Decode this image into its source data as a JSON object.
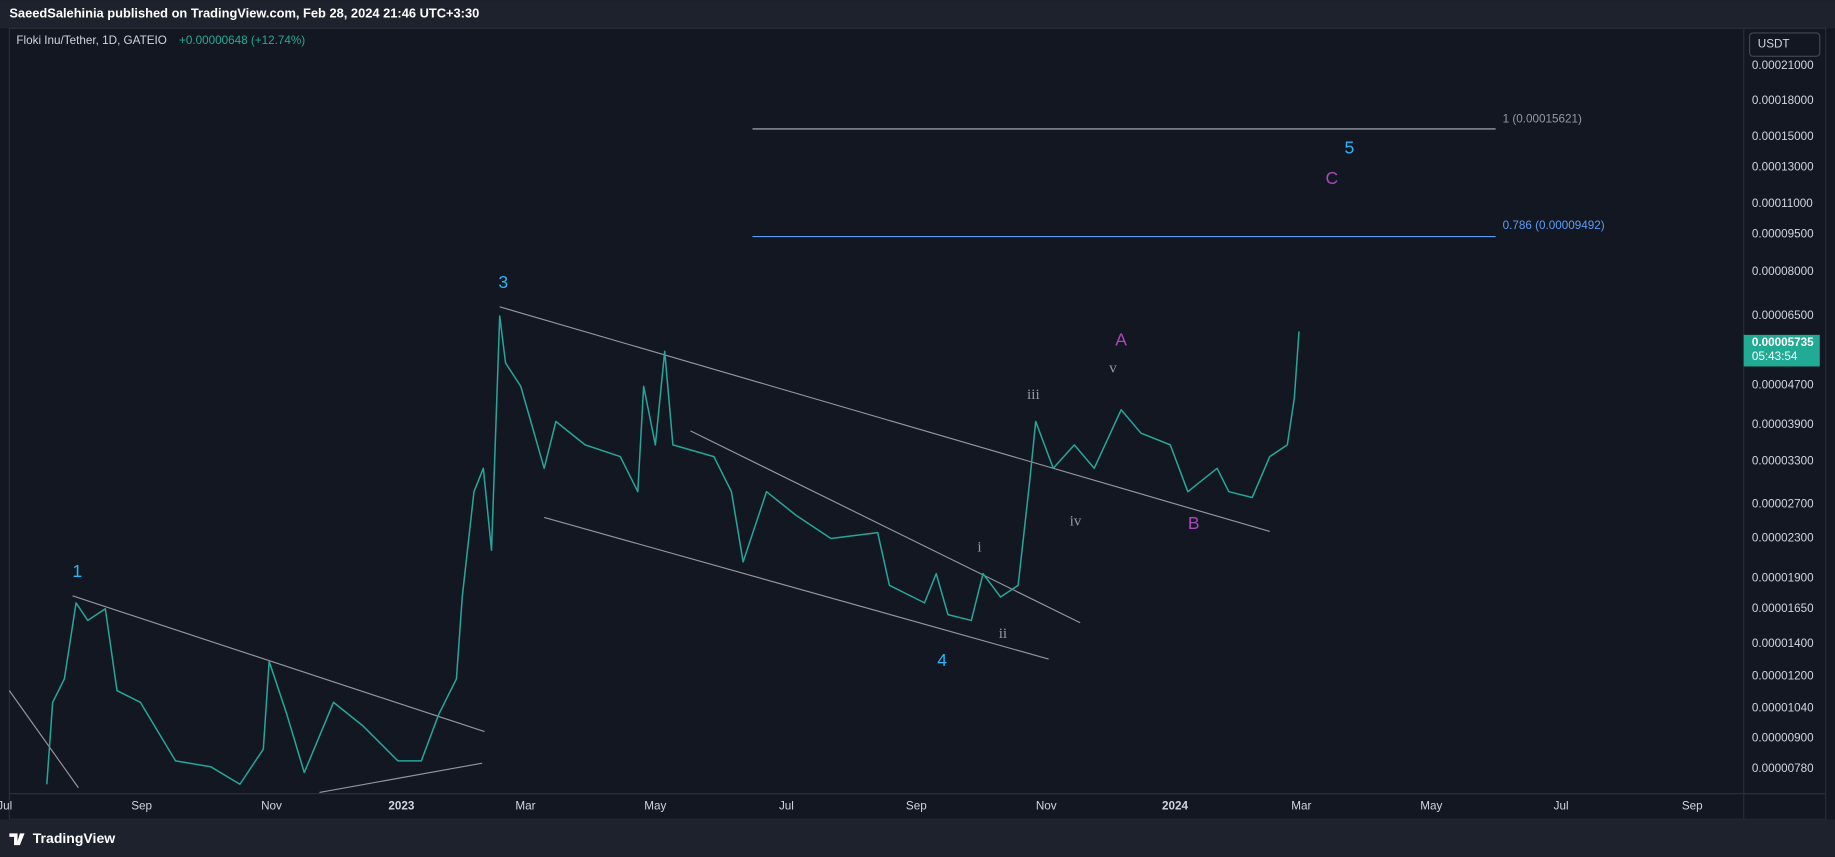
{
  "header": {
    "publisher": "SaeedSalehinia published on TradingView.com, Feb 28, 2024 21:46 UTC+3:30"
  },
  "symbol": {
    "name": "Floki Inu/Tether, 1D, GATEIO",
    "change": "+0.00000648 (+12.74%)"
  },
  "price_axis": {
    "currency": "USDT",
    "labels": [
      "0.00021000",
      "0.00018000",
      "0.00015000",
      "0.00013000",
      "0.00011000",
      "0.00009500",
      "0.00008000",
      "0.00006500",
      "0.00004700",
      "0.00003900",
      "0.00003300",
      "0.00002700",
      "0.00002300",
      "0.00001900",
      "0.00001650",
      "0.00001400",
      "0.00001200",
      "0.00001040",
      "0.00000900",
      "0.00000780"
    ],
    "current_price": "0.00005735",
    "countdown": "05:43:54"
  },
  "time_axis": {
    "labels": [
      "Jul",
      "Sep",
      "Nov",
      "2023",
      "Mar",
      "May",
      "Jul",
      "Sep",
      "Nov",
      "2024",
      "Mar",
      "May",
      "Jul",
      "Sep"
    ]
  },
  "fib_levels": [
    "1 (0.00015621)",
    "0.786 (0.00009492)"
  ],
  "wave_labels": [
    "1",
    "3",
    "4",
    "5",
    "A",
    "B",
    "C",
    "i",
    "ii",
    "iii",
    "iv",
    "v"
  ],
  "footer": {
    "brand": "TradingView"
  }
}
